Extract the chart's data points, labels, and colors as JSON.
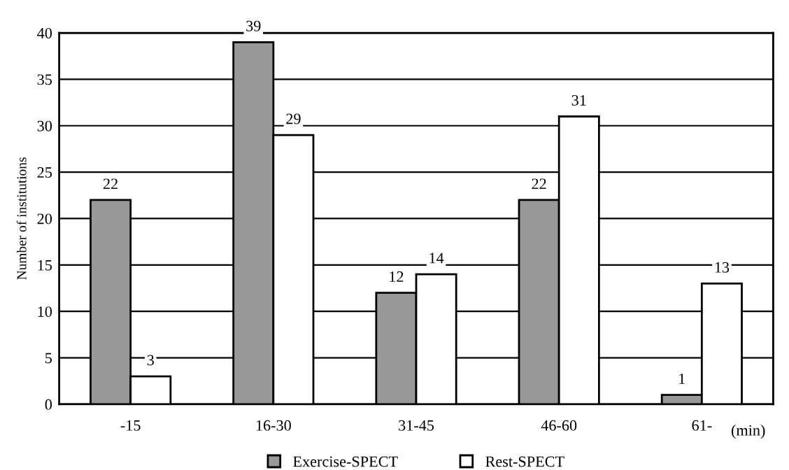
{
  "chart_data": {
    "type": "bar",
    "xlabel": "(min)",
    "ylabel": "Number of institutions",
    "categories": [
      "-15",
      "16-30",
      "31-45",
      "46-60",
      "61-"
    ],
    "series": [
      {
        "name": "Exercise-SPECT",
        "color": "#999999",
        "values": [
          22,
          39,
          12,
          22,
          1
        ]
      },
      {
        "name": "Rest-SPECT",
        "color": "#ffffff",
        "values": [
          3,
          29,
          14,
          31,
          13
        ]
      }
    ],
    "ylim": [
      0,
      40
    ],
    "yticks": [
      0,
      5,
      10,
      15,
      20,
      25,
      30,
      35,
      40
    ],
    "grid": "y",
    "data_labels": true,
    "legend": "bottom"
  }
}
